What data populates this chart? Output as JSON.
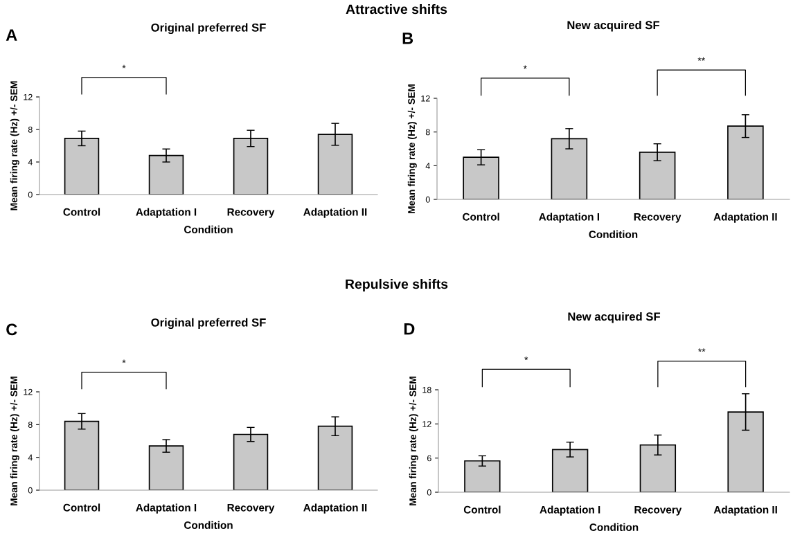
{
  "chart_data": [
    {
      "type": "bar",
      "subtitle": "Attractive shifts",
      "title": "Original preferred SF",
      "xlabel": "Condition",
      "ylabel": "Mean firing rate (Hz) +/- SEM",
      "categories": [
        "Control",
        "Adaptation I",
        "Recovery",
        "Adaptation II"
      ],
      "values": [
        6.9,
        4.8,
        6.9,
        7.4
      ],
      "errors": [
        0.9,
        0.8,
        1.0,
        1.35
      ],
      "color": "#c8c8c8",
      "ylim": [
        0,
        12
      ],
      "yticks": [
        0,
        4,
        8,
        12
      ],
      "annotations": [
        "A",
        "*"
      ]
    },
    {
      "type": "bar",
      "title": "New acquired SF",
      "xlabel": "Condition",
      "ylabel": "Mean firing rate (Hz) +/- SEM",
      "categories": [
        "Control",
        "Adaptation I",
        "Recovery",
        "Adaptation II"
      ],
      "values": [
        5.0,
        7.2,
        5.6,
        8.7
      ],
      "errors": [
        0.9,
        1.2,
        1.0,
        1.35
      ],
      "color": "#c8c8c8",
      "ylim": [
        0,
        12
      ],
      "yticks": [
        0,
        4,
        8,
        12
      ],
      "annotations": [
        "B",
        "*",
        "**"
      ]
    },
    {
      "type": "bar",
      "subtitle": "Repulsive shifts",
      "title": "Original preferred SF",
      "xlabel": "Condition",
      "ylabel": "Mean firing rate (Hz) +/- SEM",
      "categories": [
        "Control",
        "Adaptation I",
        "Recovery",
        "Adaptation II"
      ],
      "values": [
        8.4,
        5.4,
        6.8,
        7.8
      ],
      "errors": [
        0.95,
        0.77,
        0.86,
        1.15
      ],
      "color": "#c8c8c8",
      "ylim": [
        0,
        12
      ],
      "yticks": [
        0,
        4,
        8,
        12
      ],
      "annotations": [
        "C",
        "*"
      ]
    },
    {
      "type": "bar",
      "title": "New acquired SF",
      "xlabel": "Condition",
      "ylabel": "Mean firing rate (Hz) +/- SEM",
      "categories": [
        "Control",
        "Adaptation I",
        "Recovery",
        "Adaptation II"
      ],
      "values": [
        5.5,
        7.5,
        8.3,
        14.1
      ],
      "errors": [
        0.9,
        1.3,
        1.75,
        3.2
      ],
      "color": "#c8c8c8",
      "ylim": [
        0,
        18
      ],
      "yticks": [
        0,
        6,
        12,
        18
      ],
      "annotations": [
        "D",
        "*",
        "**"
      ]
    }
  ]
}
